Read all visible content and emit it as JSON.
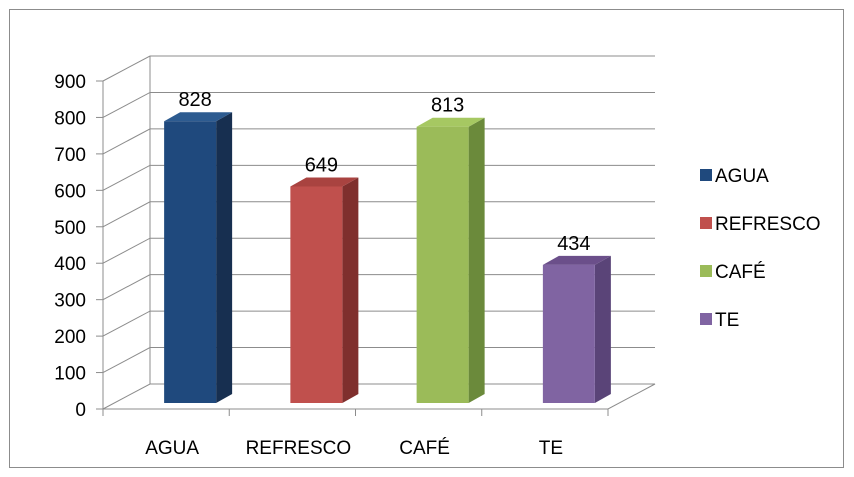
{
  "chart_data": {
    "type": "bar",
    "categories": [
      "AGUA",
      "REFRESCO",
      "CAFÉ",
      "TE"
    ],
    "values": [
      828,
      649,
      813,
      434
    ],
    "colors": [
      "#1f497d",
      "#c0504d",
      "#9bbb59",
      "#8064a2"
    ],
    "side_colors": [
      "#172f50",
      "#7f2f2d",
      "#6b8a3b",
      "#5a4478"
    ],
    "top_colors": [
      "#2d5b90",
      "#a94340",
      "#a6c862",
      "#6b4f8a"
    ],
    "ylim": [
      0,
      900
    ],
    "yticks": [
      "0",
      "100",
      "200",
      "300",
      "400",
      "500",
      "600",
      "700",
      "800",
      "900"
    ],
    "data_labels": [
      "828",
      "649",
      "813",
      "434"
    ],
    "legend": [
      "AGUA",
      "REFRESCO",
      "CAFÉ",
      "TE"
    ],
    "legend_position": "right",
    "grid": true,
    "style": "3d-column"
  }
}
